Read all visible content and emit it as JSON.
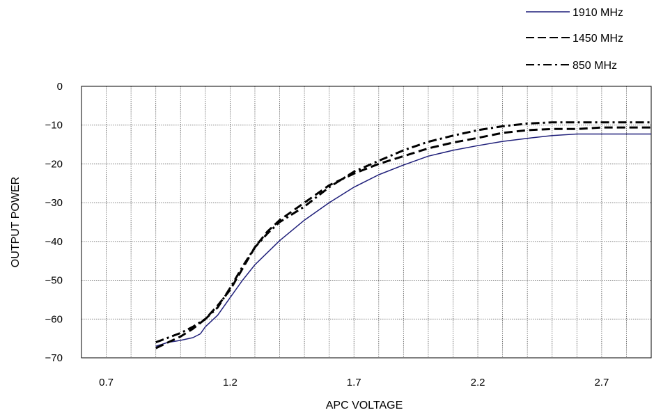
{
  "chart_data": {
    "type": "line",
    "xlabel": "APC VOLTAGE",
    "ylabel": "OUTPUT POWER",
    "xlim": [
      0.6,
      2.9
    ],
    "ylim": [
      -70,
      0
    ],
    "xticks": [
      0.7,
      1.2,
      1.7,
      2.2,
      2.7
    ],
    "xtick_labels": [
      "0.7",
      "1.2",
      "1.7",
      "2.2",
      "2.7"
    ],
    "xgrid_step": 0.1,
    "yticks": [
      0,
      -10,
      -20,
      -30,
      -40,
      -50,
      -60,
      -70
    ],
    "ytick_labels": [
      "0",
      "−10",
      "−20",
      "−30",
      "−40",
      "−50",
      "−60",
      "−70"
    ],
    "grid": true,
    "legend_position": "top-right",
    "series": [
      {
        "name": "1910 MHz",
        "style": "solid",
        "color": "#1f1f7a",
        "x": [
          0.9,
          0.95,
          1.0,
          1.05,
          1.08,
          1.1,
          1.15,
          1.2,
          1.25,
          1.3,
          1.4,
          1.5,
          1.6,
          1.7,
          1.8,
          1.9,
          2.0,
          2.1,
          2.2,
          2.3,
          2.4,
          2.5,
          2.6,
          2.7,
          2.8,
          2.9
        ],
        "y": [
          -67,
          -66,
          -65.5,
          -64.8,
          -63.8,
          -62,
          -59,
          -54.5,
          -50,
          -46,
          -39.8,
          -34.5,
          -30,
          -26,
          -22.8,
          -20.3,
          -18,
          -16.5,
          -15.3,
          -14.2,
          -13.4,
          -12.7,
          -12.3,
          -12.3,
          -12.3,
          -12.3
        ]
      },
      {
        "name": "1450 MHz",
        "style": "dashed",
        "color": "#000000",
        "x": [
          0.9,
          0.95,
          1.0,
          1.05,
          1.1,
          1.15,
          1.2,
          1.25,
          1.3,
          1.35,
          1.4,
          1.5,
          1.6,
          1.7,
          1.8,
          1.9,
          2.0,
          2.1,
          2.2,
          2.3,
          2.4,
          2.5,
          2.6,
          2.7,
          2.8,
          2.9
        ],
        "y": [
          -67.5,
          -66,
          -64.5,
          -62.5,
          -60,
          -56.5,
          -52.5,
          -47,
          -41.5,
          -37.5,
          -34.5,
          -30,
          -25.5,
          -22.5,
          -20,
          -18,
          -16,
          -14.5,
          -13.3,
          -12,
          -11.3,
          -11,
          -11,
          -10.6,
          -10.6,
          -10.6
        ]
      },
      {
        "name": "850 MHz",
        "style": "dashdot",
        "color": "#000000",
        "x": [
          0.9,
          0.95,
          1.0,
          1.05,
          1.1,
          1.15,
          1.2,
          1.25,
          1.3,
          1.35,
          1.4,
          1.5,
          1.6,
          1.7,
          1.8,
          1.9,
          2.0,
          2.1,
          2.2,
          2.3,
          2.4,
          2.5,
          2.6,
          2.7,
          2.8,
          2.9
        ],
        "y": [
          -66,
          -64.8,
          -63.6,
          -62,
          -60,
          -57,
          -52,
          -46.5,
          -41.5,
          -38,
          -35,
          -31,
          -26,
          -22,
          -19.2,
          -16.5,
          -14.3,
          -12.7,
          -11.3,
          -10.3,
          -9.6,
          -9.3,
          -9.3,
          -9.3,
          -9.3,
          -9.3
        ]
      }
    ]
  }
}
